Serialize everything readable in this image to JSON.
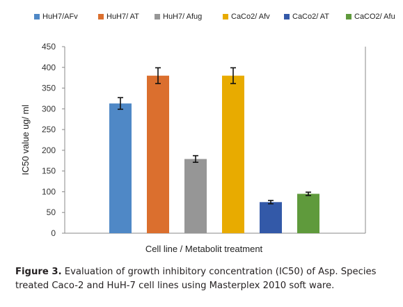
{
  "chart_data": {
    "type": "bar",
    "categories": [
      "HuH7/AFv",
      "HuH7/ AT",
      "HuH7/ Afug",
      "CaCo2/ Afv",
      "CaCo2/ AT",
      "CaCO2/ Afu"
    ],
    "values": [
      313,
      380,
      179,
      380,
      75,
      95
    ],
    "errors": [
      14,
      19,
      8,
      19,
      4,
      4
    ],
    "colors": [
      "#4f88c6",
      "#db6f2e",
      "#969696",
      "#e8ab00",
      "#3359a8",
      "#5f9a3c"
    ],
    "ylabel": "IC50 value ug/ ml",
    "xlabel": "Cell line / Metabolit treatment",
    "ylim": [
      0,
      450
    ],
    "yticks": [
      "0",
      "50",
      "100",
      "150",
      "200",
      "250",
      "300",
      "350",
      "400",
      "450"
    ],
    "legend": {
      "placement": "top",
      "entries": [
        "HuH7/AFv",
        "HuH7/ AT",
        "HuH7/ Afug",
        "CaCo2/ Afv",
        "CaCo2/ AT",
        "CaCO2/ Afu"
      ]
    },
    "grid": false
  },
  "caption": {
    "label": "Figure 3.",
    "text": " Evaluation of growth inhibitory concentration (IC50) of Asp. Species treated Caco-2 and HuH-7 cell lines using Masterplex 2010 soft ware."
  }
}
